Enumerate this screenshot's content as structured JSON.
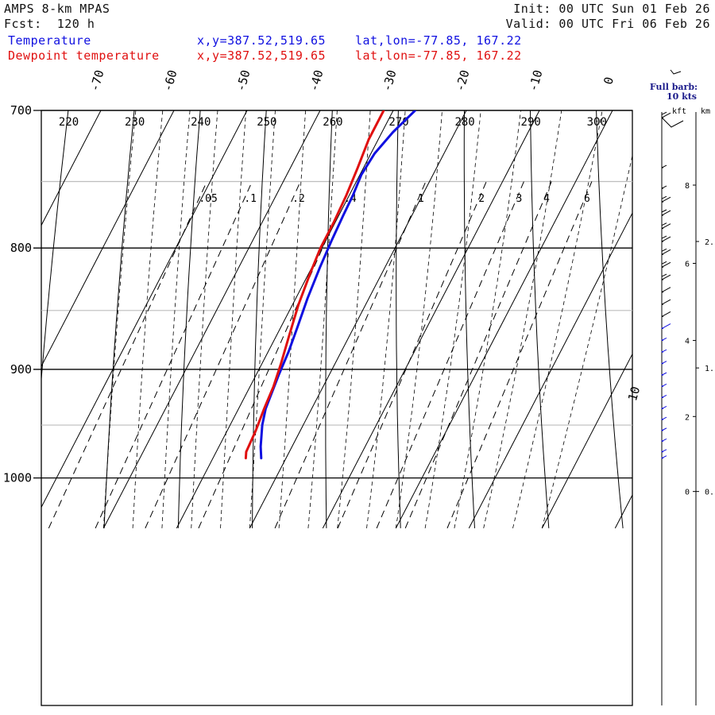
{
  "header": {
    "model": "AMPS 8-km MPAS",
    "fcst": "Fcst:  120 h",
    "init": "Init: 00 UTC Sun 01 Feb 26",
    "valid": "Valid: 00 UTC Fri 06 Feb 26",
    "temp_label": "Temperature",
    "dew_label": "Dewpoint temperature",
    "xy": "x,y=387.52,519.65",
    "latlon": "lat,lon=-77.85, 167.22"
  },
  "colors": {
    "temperature": "#1010e0",
    "dewpoint": "#e01010",
    "header_blue": "#1010e0",
    "header_red": "#e01010"
  },
  "chart_data": {
    "type": "line",
    "title": "AMPS 8-km MPAS Skew-T",
    "pressure_levels": [
      700,
      800,
      900,
      1000
    ],
    "isotherm_labels": [
      -70,
      -60,
      -50,
      -40,
      -30,
      -20,
      -10,
      0,
      10
    ],
    "dry_adiabat_labels": [
      220,
      230,
      240,
      250,
      260,
      270,
      280,
      290,
      300
    ],
    "mixing_ratio_labels": [
      ".05",
      ".1",
      ".2",
      ".4",
      "1",
      "2",
      "3",
      "4",
      "6"
    ],
    "barb_legend": "Full barb:\n10 kts",
    "height_axis": {
      "kft_label": "kft",
      "km_label": "km",
      "kft_ticks": [
        0,
        2,
        4,
        6,
        8
      ],
      "km_ticks": [
        1,
        2
      ]
    },
    "series": [
      {
        "name": "Temperature",
        "points": [
          [
            -23.4,
            981
          ],
          [
            -24.3,
            970
          ],
          [
            -25.6,
            950
          ],
          [
            -26.3,
            935
          ],
          [
            -26.6,
            920
          ],
          [
            -26.9,
            905
          ],
          [
            -27.2,
            885
          ],
          [
            -27.7,
            865
          ],
          [
            -28.4,
            840
          ],
          [
            -28.9,
            815
          ],
          [
            -29.2,
            795
          ],
          [
            -29.4,
            775
          ],
          [
            -29.5,
            760
          ],
          [
            -29.8,
            745
          ],
          [
            -29.5,
            730
          ],
          [
            -28.5,
            715
          ],
          [
            -27.0,
            700
          ]
        ]
      },
      {
        "name": "Dewpoint temperature",
        "points": [
          [
            -25.5,
            981
          ],
          [
            -25.9,
            975
          ],
          [
            -26.1,
            955
          ],
          [
            -26.5,
            935
          ],
          [
            -26.8,
            915
          ],
          [
            -27.4,
            895
          ],
          [
            -28.3,
            870
          ],
          [
            -29.2,
            845
          ],
          [
            -29.8,
            820
          ],
          [
            -30.2,
            800
          ],
          [
            -30.2,
            780
          ],
          [
            -30.4,
            760
          ],
          [
            -30.8,
            740
          ],
          [
            -31.3,
            720
          ],
          [
            -31.3,
            700
          ]
        ]
      }
    ],
    "wind_profile": {
      "unit": "kts",
      "barbs": [
        [
          981,
          5
        ],
        [
          975,
          5
        ],
        [
          965,
          5
        ],
        [
          955,
          5
        ],
        [
          945,
          5
        ],
        [
          935,
          5
        ],
        [
          925,
          5
        ],
        [
          915,
          5
        ],
        [
          905,
          5
        ],
        [
          895,
          5
        ],
        [
          885,
          5
        ],
        [
          875,
          5
        ],
        [
          865,
          10
        ],
        [
          855,
          10
        ],
        [
          845,
          10
        ],
        [
          835,
          10
        ],
        [
          825,
          15
        ],
        [
          815,
          15
        ],
        [
          805,
          15
        ],
        [
          795,
          15
        ],
        [
          785,
          15
        ],
        [
          775,
          15
        ],
        [
          765,
          15
        ],
        [
          755,
          5
        ],
        [
          740,
          5
        ],
        [
          705,
          15
        ]
      ]
    }
  }
}
